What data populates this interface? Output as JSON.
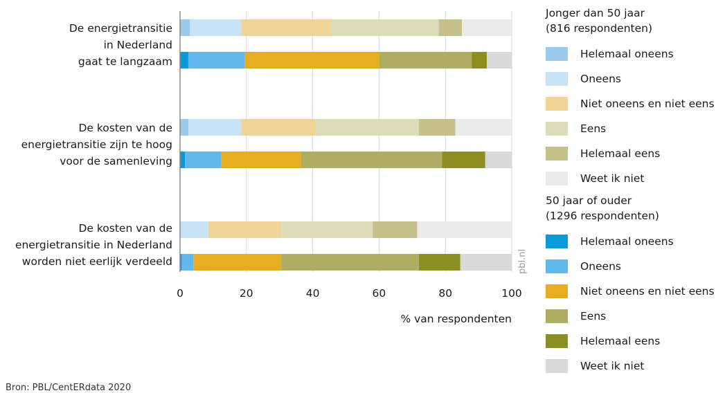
{
  "chart_data": {
    "type": "bar",
    "orientation": "horizontal",
    "stacked": true,
    "categories": [
      [
        "De energietransitie",
        "in Nederland",
        "gaat te langzaam"
      ],
      [
        "De kosten van de",
        "energietransitie zijn te hoog",
        "voor de samenleving"
      ],
      [
        "De kosten van de",
        "energietransitie in Nederland",
        "worden niet eerlijk verdeeld"
      ]
    ],
    "segments": [
      "Helemaal oneens",
      "Oneens",
      "Niet oneens en niet eens",
      "Eens",
      "Helemaal eens",
      "Weet ik niet"
    ],
    "groups": [
      {
        "name": "Jonger dan 50 jaar",
        "subtitle": "(816 respondenten)",
        "colors": [
          "#9ccbee",
          "#c9e3f6",
          "#f2d596",
          "#dcdcb9",
          "#c4c28a",
          "#ebebeb"
        ],
        "values": [
          [
            3,
            15.5,
            27,
            32.5,
            7,
            15
          ],
          [
            2.5,
            16,
            22.5,
            31,
            11,
            17
          ],
          [
            0,
            8.5,
            22,
            27.5,
            13.5,
            28.5
          ]
        ]
      },
      {
        "name": "50 jaar of ouder",
        "subtitle": "(1296 respondenten)",
        "colors": [
          "#0a9ad9",
          "#63b8eb",
          "#e8ac22",
          "#aeae62",
          "#8b8f22",
          "#d9d9d9"
        ],
        "values": [
          [
            2.5,
            17,
            40.5,
            28,
            4.5,
            7.5
          ],
          [
            1.5,
            11,
            24,
            42.5,
            13,
            8
          ],
          [
            0.5,
            3.5,
            26.5,
            41.5,
            12.5,
            15.5
          ]
        ]
      }
    ],
    "xlabel": "% van respondenten",
    "xlim": [
      0,
      100
    ],
    "xticks": [
      0,
      20,
      40,
      60,
      80,
      100
    ],
    "grid": true,
    "legend_position": "right",
    "watermark": "pbl.nl"
  },
  "source": "Bron: PBL/CentERdata 2020"
}
